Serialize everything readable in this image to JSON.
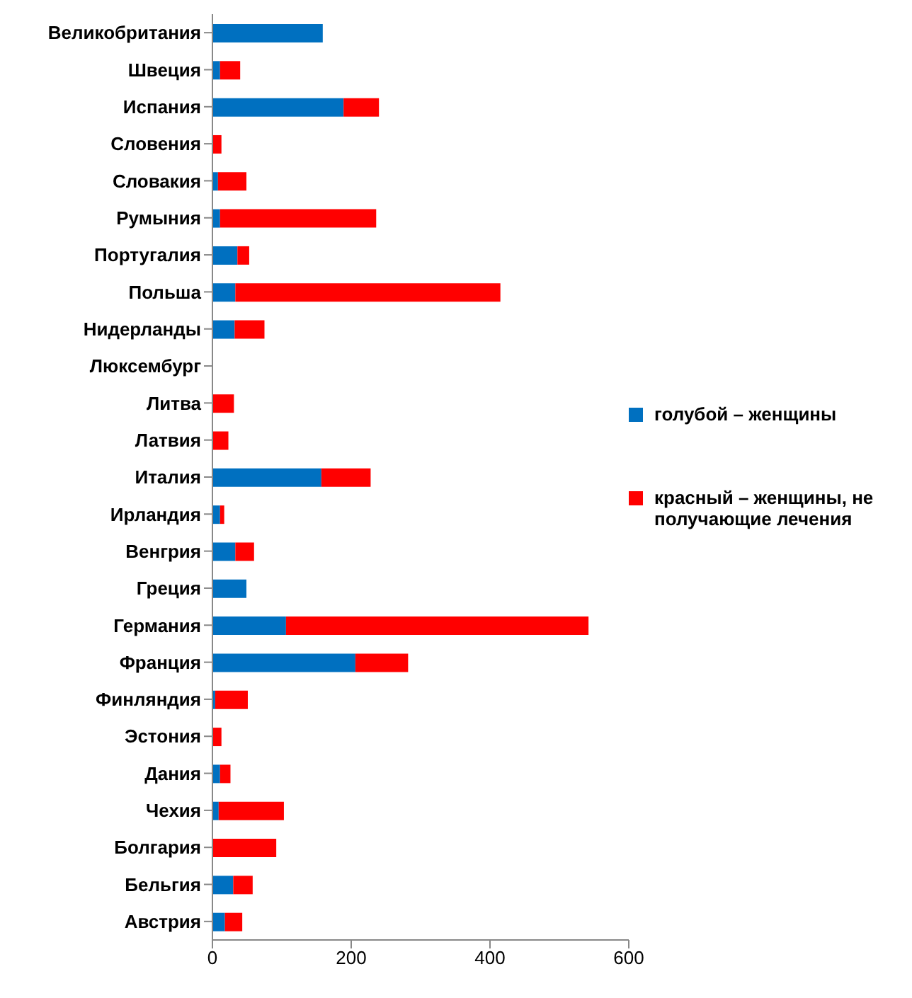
{
  "chart_data": {
    "type": "bar",
    "orientation": "horizontal",
    "stacked": true,
    "categories": [
      "Великобритания",
      "Швеция",
      "Испания",
      "Словения",
      "Словакия",
      "Румыния",
      "Португалия",
      "Польша",
      "Нидерланды",
      "Люксембург",
      "Литва",
      "Латвия",
      "Италия",
      "Ирландия",
      "Венгрия",
      "Греция",
      "Германия",
      "Франция",
      "Финляндия",
      "Эстония",
      "Дания",
      "Чехия",
      "Болгария",
      "Бельгия",
      "Австрия"
    ],
    "series": [
      {
        "name": "голубой – женщины",
        "color": "#0070c0",
        "values": [
          159,
          11,
          189,
          0,
          8,
          11,
          36,
          33,
          32,
          0,
          0,
          0,
          157,
          11,
          33,
          49,
          106,
          206,
          4,
          0,
          11,
          9,
          0,
          30,
          18
        ]
      },
      {
        "name": "красный – женщины, не получающие лечения",
        "color": "#ff0000",
        "values": [
          0,
          29,
          51,
          13,
          41,
          225,
          17,
          382,
          43,
          null,
          31,
          23,
          71,
          6,
          27,
          0,
          436,
          76,
          47,
          13,
          15,
          94,
          92,
          28,
          25
        ]
      }
    ],
    "xlim": [
      0,
      600
    ],
    "xticks": [
      0,
      200,
      400,
      600
    ],
    "legend": "right",
    "grid": false
  }
}
